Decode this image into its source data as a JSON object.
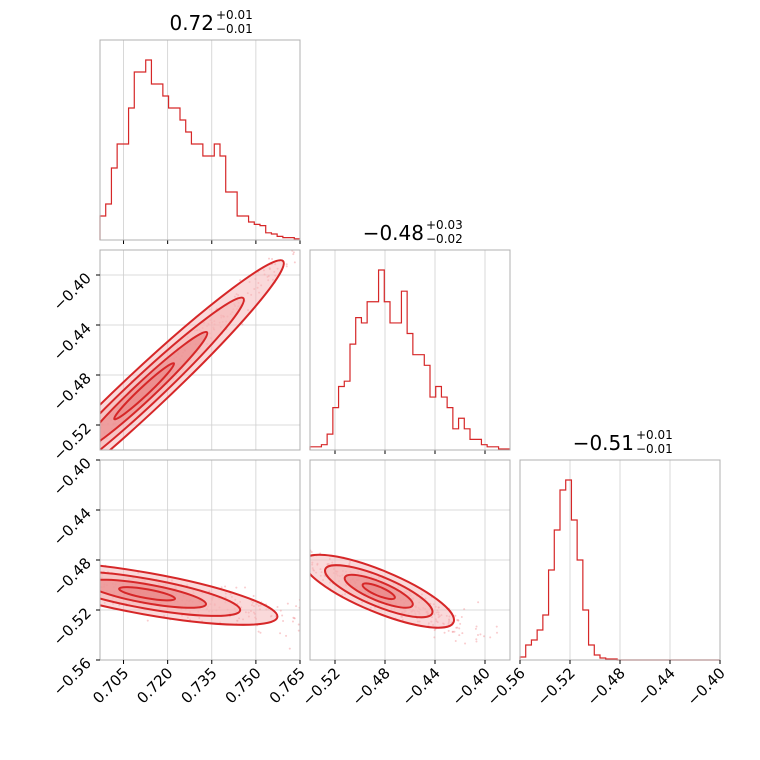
{
  "colors": {
    "accent": "#d62728",
    "fill_outer": "#f5b5b6",
    "fill_inner": "#e98586",
    "scatter": "#f4a3a5"
  },
  "chart_data": {
    "type": "corner",
    "parameters": [
      {
        "title": {
          "main": "0.72",
          "upper": "+0.01",
          "lower": "−0.01"
        },
        "range": [
          0.697,
          0.765
        ],
        "ticks": [
          0.705,
          0.72,
          0.735,
          0.75,
          0.765
        ],
        "tick_labels": [
          "0.705",
          "0.720",
          "0.735",
          "0.750",
          "0.765"
        ],
        "hist": [
          2,
          3,
          6,
          8,
          8,
          11,
          14,
          14,
          15,
          13,
          13,
          12,
          11,
          11,
          10,
          9,
          8,
          8,
          7,
          7,
          8,
          7,
          4,
          4,
          2,
          2,
          1.5,
          1.3,
          1.2,
          0.6,
          0.5,
          0.3,
          0.2,
          0.2,
          0.1
        ]
      },
      {
        "title": {
          "main": "−0.48",
          "upper": "+0.03",
          "lower": "−0.02"
        },
        "range": [
          -0.54,
          -0.38
        ],
        "ticks": [
          -0.52,
          -0.48,
          -0.44,
          -0.4
        ],
        "tick_labels": [
          "−0.52",
          "−0.48",
          "−0.44",
          "−0.40"
        ],
        "hist": [
          0.3,
          0.3,
          0.5,
          1.5,
          4,
          6,
          6.5,
          10,
          12.5,
          12,
          14,
          14,
          17,
          14,
          12,
          12,
          15,
          11,
          9,
          9,
          8,
          5,
          6,
          5,
          4,
          2,
          3,
          2,
          1,
          1,
          0.5,
          0.3,
          0.3,
          0.1,
          0.1
        ]
      },
      {
        "title": {
          "main": "−0.51",
          "upper": "+0.01",
          "lower": "−0.01"
        },
        "range": [
          -0.56,
          -0.4
        ],
        "ticks": [
          -0.56,
          -0.52,
          -0.48,
          -0.44,
          -0.4
        ],
        "tick_labels": [
          "−0.56",
          "−0.52",
          "−0.48",
          "−0.44",
          "−0.40"
        ],
        "hist": [
          0.3,
          1.5,
          2,
          3,
          4.5,
          9,
          13,
          17,
          18,
          14,
          10,
          5,
          1.5,
          0.5,
          0.2,
          0.1,
          0.1,
          0,
          0,
          0,
          0,
          0,
          0,
          0,
          0,
          0,
          0,
          0,
          0,
          0,
          0,
          0,
          0,
          0,
          0
        ]
      }
    ],
    "pair_panels": [
      {
        "x_param": 0,
        "y_param": 1,
        "yticks": [
          -0.52,
          -0.48,
          -0.44,
          -0.4
        ],
        "ytick_labels": [
          "−0.52",
          "−0.48",
          "−0.44",
          "−0.40"
        ],
        "center": [
          0.712,
          -0.493
        ],
        "dir": [
          0.0225,
          0.0496
        ],
        "spread": [
          1.2,
          0.45
        ]
      },
      {
        "x_param": 0,
        "y_param": 2,
        "yticks": [
          -0.56,
          -0.52,
          -0.48,
          -0.44,
          -0.4
        ],
        "ytick_labels": [
          "−0.56",
          "−0.52",
          "−0.48",
          "−0.44",
          "−0.40"
        ],
        "center": [
          0.713,
          -0.507
        ],
        "dir": [
          0.0211,
          -0.0089
        ],
        "spread": [
          1.25,
          0.5
        ]
      },
      {
        "x_param": 1,
        "y_param": 2,
        "center": [
          -0.485,
          -0.505
        ],
        "dir": [
          0.0285,
          -0.0118
        ],
        "spread": [
          1.25,
          0.45
        ]
      }
    ]
  }
}
